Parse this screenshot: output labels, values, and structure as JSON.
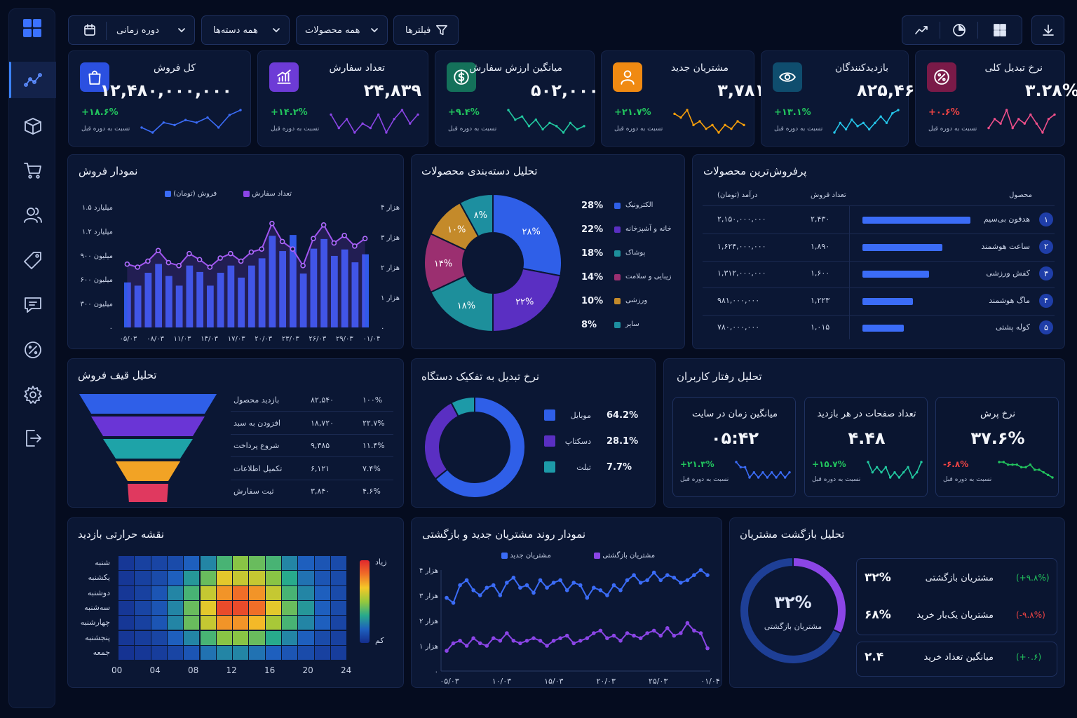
{
  "colors": {
    "bg": "#050c1f",
    "card": "#0b1734",
    "blue": "#3b6cf7",
    "purple": "#8b45e6",
    "green": "#22c55e",
    "red": "#ef4444"
  },
  "sidebar": {
    "items": [
      {
        "icon": "analytics-icon",
        "active": true
      },
      {
        "icon": "box-icon"
      },
      {
        "icon": "cart-icon"
      },
      {
        "icon": "users-icon"
      },
      {
        "icon": "tag-icon"
      },
      {
        "icon": "message-icon"
      },
      {
        "icon": "discount-icon"
      },
      {
        "icon": "settings-icon"
      },
      {
        "icon": "logout-icon"
      }
    ]
  },
  "toolbar": {
    "filters": "فیلترها",
    "products": "همه محصولات",
    "categories": "همه دسته‌ها",
    "period": "دوره زمانی",
    "views": [
      "line-chart-icon",
      "pie-chart-icon",
      "grid-icon"
    ],
    "download": "download-icon"
  },
  "kpis": [
    {
      "label": "کل فروش",
      "value": "۱۲,۴۸۰,۰۰۰,۰۰۰",
      "change": "+۱۸.۶%",
      "note": "نسبت به دوره قبل",
      "color": "#2b50e0",
      "icon": "bag-icon",
      "trend": "up",
      "spark": [
        5,
        3,
        7,
        6,
        8,
        7,
        9,
        5,
        10,
        12
      ]
    },
    {
      "label": "تعداد سفارش",
      "value": "۲۴,۸۳۹",
      "change": "+۱۴.۲%",
      "note": "نسبت به دوره قبل",
      "color": "#6d3bd6",
      "icon": "chart-up-icon",
      "trend": "up",
      "spark": [
        8,
        5,
        7,
        4,
        6,
        5,
        8,
        4,
        7,
        9,
        6,
        8
      ]
    },
    {
      "label": "میانگین ارزش سفارش",
      "value": "۵۰۲,۰۰۰",
      "change": "+۹.۴%",
      "note": "نسبت به دوره قبل",
      "color": "#14715a",
      "icon": "dollar-icon",
      "trend": "up",
      "spark": [
        9,
        6,
        7,
        4,
        6,
        3,
        5,
        4,
        2,
        5,
        3,
        4
      ]
    },
    {
      "label": "مشتریان جدید",
      "value": "۳,۷۸۱",
      "change": "+۲۱.۷%",
      "note": "نسبت به دوره قبل",
      "color": "#f08a12",
      "icon": "user-icon",
      "trend": "up",
      "spark": [
        8,
        7,
        9,
        5,
        6,
        4,
        5,
        3,
        5,
        4,
        6,
        5
      ]
    },
    {
      "label": "بازدیدکنندگان",
      "value": "۸۲۵,۴۶۰",
      "change": "+۱۳.۱%",
      "note": "نسبت به دوره قبل",
      "color": "#0f4d6e",
      "icon": "eye-icon",
      "trend": "up",
      "spark": [
        3,
        6,
        4,
        7,
        5,
        6,
        4,
        6,
        8,
        6,
        9,
        10
      ]
    },
    {
      "label": "نرخ تبدیل کلی",
      "value": "۳.۲۸%",
      "change": "+۰.۶%",
      "note": "نسبت به دوره قبل",
      "color": "#7a1a48",
      "icon": "percent-icon",
      "trend": "down",
      "spark": [
        4,
        6,
        5,
        8,
        4,
        6,
        5,
        7,
        5,
        3,
        6,
        7
      ]
    }
  ],
  "sales_chart": {
    "title": "نمودار فروش",
    "legend_sales": "فروش (تومان)",
    "legend_orders": "تعداد سفارش",
    "y_left": [
      "۱.۵ میلیارد",
      "۱.۲ میلیارد",
      "۹۰۰ میلیون",
      "۶۰۰ میلیون",
      "۳۰۰ میلیون",
      "۰"
    ],
    "y_right": [
      "۴ هزار",
      "۳ هزار",
      "۲ هزار",
      "۱ هزار",
      "۰"
    ],
    "x": [
      "۰۵/۰۳",
      "۰۸/۰۳",
      "۱۱/۰۳",
      "۱۴/۰۳",
      "۱۷/۰۳",
      "۲۰/۰۳",
      "۲۳/۰۳",
      "۲۶/۰۳",
      "۲۹/۰۳",
      "۰۱/۰۴"
    ]
  },
  "chart_data": [
    {
      "type": "bar",
      "title": "نمودار فروش",
      "series": [
        {
          "name": "فروش (تومان)",
          "values": [
            560,
            520,
            680,
            790,
            640,
            520,
            770,
            690,
            520,
            680,
            770,
            620,
            770,
            860,
            1140,
            950,
            1150,
            670,
            980,
            1100,
            890,
            970,
            810,
            910
          ]
        },
        {
          "name": "تعداد سفارش",
          "values": [
            2100,
            2000,
            2200,
            2550,
            2150,
            2050,
            2450,
            2250,
            2000,
            2300,
            2450,
            2200,
            2500,
            2600,
            3450,
            2850,
            2600,
            2050,
            2950,
            3400,
            2800,
            3050,
            2700,
            2950
          ]
        }
      ],
      "ylim": [
        0,
        1500
      ]
    },
    {
      "type": "pie",
      "title": "تحلیل دسته‌بندی محصولات",
      "categories": [
        "الکترونیک",
        "خانه و آشپزخانه",
        "پوشاک",
        "زیبایی و سلامت",
        "ورزشی",
        "سایر"
      ],
      "values": [
        28,
        22,
        18,
        14,
        10,
        8
      ],
      "labels": [
        "۲۸%",
        "۲۲%",
        "۱۸%",
        "۱۴%",
        "۱۰%",
        "۸%"
      ],
      "legend_values": [
        "28%",
        "22%",
        "18%",
        "14%",
        "10%",
        "8%"
      ],
      "colors": [
        "#2f5fe8",
        "#5a2fc2",
        "#1d8f9b",
        "#9b2f70",
        "#c48a2a",
        "#1d8fa0"
      ]
    },
    {
      "type": "pie",
      "title": "نرخ تبدیل به تفکیک دستگاه",
      "categories": [
        "موبایل",
        "دسکتاپ",
        "تبلت"
      ],
      "values": [
        64.2,
        28.1,
        7.7
      ],
      "labels": [
        "64.2%",
        "28.1%",
        "7.7%"
      ],
      "colors": [
        "#2f5fe8",
        "#5a2fc2",
        "#1d9aa8"
      ]
    },
    {
      "type": "line",
      "title": "نمودار روند مشتریان جدید و بازگشتی",
      "series": [
        {
          "name": "مشتریان جدید",
          "values": [
            2.9,
            2.7,
            3.4,
            3.6,
            3.2,
            3.0,
            3.3,
            3.4,
            3.0,
            3.5,
            3.7,
            3.3,
            3.4,
            3.1,
            3.6,
            3.3,
            3.5,
            3.6,
            3.2,
            3.5,
            3.4,
            2.9,
            3.3,
            3.2,
            3.0,
            3.4,
            3.2,
            3.6,
            3.8,
            3.5,
            3.6,
            3.9,
            3.6,
            3.8,
            3.7,
            3.5,
            3.6,
            3.8,
            4.0,
            3.8
          ]
        },
        {
          "name": "مشتریان بازگشتی",
          "values": [
            0.8,
            1.1,
            1.2,
            1.0,
            1.3,
            1.1,
            1.0,
            1.3,
            1.2,
            1.5,
            1.2,
            1.1,
            1.2,
            1.3,
            1.2,
            1.0,
            1.2,
            1.3,
            1.4,
            1.1,
            1.2,
            1.3,
            1.5,
            1.6,
            1.3,
            1.4,
            1.2,
            1.5,
            1.4,
            1.3,
            1.5,
            1.6,
            1.4,
            1.7,
            1.4,
            1.5,
            1.9,
            1.6,
            1.5,
            0.9
          ]
        }
      ],
      "ylim": [
        0,
        4
      ]
    }
  ],
  "categories": {
    "title": "تحلیل دسته‌بندی محصولات"
  },
  "top_products": {
    "title": "پرفروش‌ترین محصولات",
    "headers": [
      "محصول",
      "تعداد فروش",
      "درآمد (تومان)"
    ],
    "rows": [
      {
        "rank": "۱",
        "name": "هدفون بی‌سیم",
        "qty": "۲,۴۳۰",
        "revenue": "۲,۱۵۰,۰۰۰,۰۰۰",
        "share": 100
      },
      {
        "rank": "۲",
        "name": "ساعت هوشمند",
        "qty": "۱,۸۹۰",
        "revenue": "۱,۶۲۴,۰۰۰,۰۰۰",
        "share": 74
      },
      {
        "rank": "۳",
        "name": "کفش ورزشی",
        "qty": "۱,۶۰۰",
        "revenue": "۱,۳۱۲,۰۰۰,۰۰۰",
        "share": 62
      },
      {
        "rank": "۴",
        "name": "ماگ هوشمند",
        "qty": "۱,۲۲۳",
        "revenue": "۹۸۱,۰۰۰,۰۰۰",
        "share": 47
      },
      {
        "rank": "۵",
        "name": "کوله پشتی",
        "qty": "۱,۰۱۵",
        "revenue": "۷۸۰,۰۰۰,۰۰۰",
        "share": 38
      }
    ]
  },
  "funnel": {
    "title": "تحلیل قیف فروش",
    "rows": [
      {
        "label": "بازدید محصول",
        "count": "۸۲,۵۴۰",
        "pct": "۱۰۰%",
        "color": "#2f5fe8"
      },
      {
        "label": "افزودن به سبد",
        "count": "۱۸,۷۲۰",
        "pct": "۲۲.۷%",
        "color": "#6a35d6"
      },
      {
        "label": "شروع پرداخت",
        "count": "۹,۳۸۵",
        "pct": "۱۱.۴%",
        "color": "#1ea3a8"
      },
      {
        "label": "تکمیل اطلاعات",
        "count": "۶,۱۲۱",
        "pct": "۷.۴%",
        "color": "#f2a325"
      },
      {
        "label": "ثبت سفارش",
        "count": "۳,۸۴۰",
        "pct": "۴.۶%",
        "color": "#e0395f"
      }
    ]
  },
  "devices": {
    "title": "نرخ تبدیل به تفکیک دستگاه"
  },
  "behavior": {
    "title": "تحلیل رفتار کاربران",
    "cards": [
      {
        "label": "میانگین زمان در سایت",
        "value": "۰۵:۴۲",
        "change": "+۲۱.۳%",
        "note": "نسبت به دوره قبل",
        "trend": "up",
        "spark": [
          6,
          5,
          5,
          3,
          4,
          3,
          4,
          3,
          4,
          3,
          4,
          3,
          4
        ]
      },
      {
        "label": "تعداد صفحات در هر بازدید",
        "value": "۴.۴۸",
        "change": "+۱۵.۷%",
        "note": "نسبت به دوره قبل",
        "trend": "up",
        "spark": [
          6,
          4,
          5,
          4,
          5,
          3,
          4,
          3,
          4,
          5,
          3,
          4,
          6
        ]
      },
      {
        "label": "نرخ پرش",
        "value": "۳۷.۶%",
        "change": "-۶.۸%",
        "note": "نسبت به دوره قبل",
        "trend": "down",
        "spark": [
          7,
          7,
          6,
          6,
          6,
          5,
          5,
          6,
          4,
          4,
          3,
          2,
          1
        ]
      }
    ]
  },
  "heatmap": {
    "title": "نقشه حرارتی بازدید",
    "days": [
      "شنبه",
      "یکشنبه",
      "دوشنبه",
      "سه‌شنبه",
      "چهارشنبه",
      "پنجشنبه",
      "جمعه"
    ],
    "hours": [
      "00",
      "04",
      "08",
      "12",
      "16",
      "20",
      "24"
    ],
    "legend_high": "زیاد",
    "legend_low": "کم"
  },
  "heat_values": [
    [
      0.05,
      0.1,
      0.12,
      0.15,
      0.25,
      0.35,
      0.5,
      0.6,
      0.55,
      0.5,
      0.35,
      0.25,
      0.2,
      0.15
    ],
    [
      0.05,
      0.1,
      0.15,
      0.25,
      0.4,
      0.55,
      0.75,
      0.7,
      0.7,
      0.6,
      0.45,
      0.3,
      0.2,
      0.15
    ],
    [
      0.05,
      0.1,
      0.2,
      0.35,
      0.5,
      0.7,
      0.85,
      0.9,
      0.85,
      0.7,
      0.5,
      0.35,
      0.25,
      0.15
    ],
    [
      0.05,
      0.12,
      0.2,
      0.35,
      0.55,
      0.75,
      0.95,
      0.95,
      0.9,
      0.75,
      0.55,
      0.4,
      0.25,
      0.15
    ],
    [
      0.05,
      0.1,
      0.2,
      0.35,
      0.55,
      0.7,
      0.85,
      0.85,
      0.8,
      0.65,
      0.5,
      0.35,
      0.25,
      0.12
    ],
    [
      0.05,
      0.08,
      0.12,
      0.25,
      0.35,
      0.5,
      0.6,
      0.6,
      0.55,
      0.45,
      0.35,
      0.25,
      0.15,
      0.1
    ],
    [
      0.03,
      0.05,
      0.08,
      0.12,
      0.2,
      0.3,
      0.35,
      0.35,
      0.3,
      0.25,
      0.2,
      0.15,
      0.1,
      0.08
    ]
  ],
  "trend": {
    "title": "نمودار روند مشتریان جدید و بازگشتی",
    "legend_new": "مشتریان جدید",
    "legend_returning": "مشتریان بازگشتی",
    "y": [
      "۴ هزار",
      "۳ هزار",
      "۲ هزار",
      "۱ هزار",
      "۰"
    ],
    "x": [
      "۰۵/۰۳",
      "۱۰/۰۳",
      "۱۵/۰۳",
      "۲۰/۰۳",
      "۲۵/۰۳",
      "۰۱/۰۴"
    ]
  },
  "retention": {
    "title": "تحلیل بازگشت مشتریان",
    "center_value": "۳۲%",
    "center_label": "مشتریان بازگشتی",
    "returning_pct": 32,
    "rows": [
      {
        "label": "مشتریان بازگشتی",
        "value": "۳۲%",
        "change": "(+۹.۸%)",
        "color": "#22c55e"
      },
      {
        "label": "مشتریان یک‌بار خرید",
        "value": "۶۸%",
        "change": "(-۹.۸%)",
        "color": "#ef4444"
      },
      {
        "label": "میانگین تعداد خرید",
        "value": "۲.۴",
        "change": "(+۰.۶)",
        "color": "#22c55e"
      }
    ]
  }
}
